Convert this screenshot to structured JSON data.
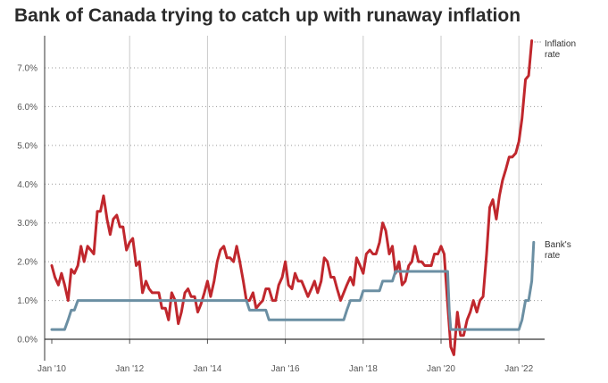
{
  "chart_data": {
    "type": "line",
    "title": "Bank of Canada trying to catch up with runaway inflation",
    "xlabel": "",
    "ylabel": "",
    "xlim": [
      2010.0,
      2022.5
    ],
    "ylim": [
      -0.5,
      7.8
    ],
    "x_ticks": [
      2010,
      2012,
      2014,
      2016,
      2018,
      2020,
      2022
    ],
    "x_tick_labels": [
      "Jan '10",
      "Jan '12",
      "Jan '14",
      "Jan '16",
      "Jan '18",
      "Jan '20",
      "Jan '22"
    ],
    "y_ticks": [
      0,
      1,
      2,
      3,
      4,
      5,
      6,
      7
    ],
    "y_tick_labels": [
      "0.0%",
      "1.0%",
      "2.0%",
      "3.0%",
      "4.0%",
      "5.0%",
      "6.0%",
      "7.0%"
    ],
    "grid": {
      "horizontal": "dotted",
      "vertical": "solid"
    },
    "series": [
      {
        "name": "Inflation rate",
        "color": "#c0272d",
        "points": [
          [
            2010.0,
            1.9
          ],
          [
            2010.08,
            1.6
          ],
          [
            2010.17,
            1.4
          ],
          [
            2010.25,
            1.7
          ],
          [
            2010.33,
            1.4
          ],
          [
            2010.42,
            1.0
          ],
          [
            2010.5,
            1.8
          ],
          [
            2010.58,
            1.7
          ],
          [
            2010.67,
            1.9
          ],
          [
            2010.75,
            2.4
          ],
          [
            2010.83,
            2.0
          ],
          [
            2010.92,
            2.4
          ],
          [
            2011.0,
            2.3
          ],
          [
            2011.08,
            2.2
          ],
          [
            2011.17,
            3.3
          ],
          [
            2011.25,
            3.3
          ],
          [
            2011.33,
            3.7
          ],
          [
            2011.42,
            3.1
          ],
          [
            2011.5,
            2.7
          ],
          [
            2011.58,
            3.1
          ],
          [
            2011.67,
            3.2
          ],
          [
            2011.75,
            2.9
          ],
          [
            2011.83,
            2.9
          ],
          [
            2011.92,
            2.3
          ],
          [
            2012.0,
            2.5
          ],
          [
            2012.08,
            2.6
          ],
          [
            2012.17,
            1.9
          ],
          [
            2012.25,
            2.0
          ],
          [
            2012.33,
            1.2
          ],
          [
            2012.42,
            1.5
          ],
          [
            2012.5,
            1.3
          ],
          [
            2012.58,
            1.2
          ],
          [
            2012.67,
            1.2
          ],
          [
            2012.75,
            1.2
          ],
          [
            2012.83,
            0.8
          ],
          [
            2012.92,
            0.8
          ],
          [
            2013.0,
            0.5
          ],
          [
            2013.08,
            1.2
          ],
          [
            2013.17,
            1.0
          ],
          [
            2013.25,
            0.4
          ],
          [
            2013.33,
            0.7
          ],
          [
            2013.42,
            1.2
          ],
          [
            2013.5,
            1.3
          ],
          [
            2013.58,
            1.1
          ],
          [
            2013.67,
            1.1
          ],
          [
            2013.75,
            0.7
          ],
          [
            2013.83,
            0.9
          ],
          [
            2013.92,
            1.2
          ],
          [
            2014.0,
            1.5
          ],
          [
            2014.08,
            1.1
          ],
          [
            2014.17,
            1.5
          ],
          [
            2014.25,
            2.0
          ],
          [
            2014.33,
            2.3
          ],
          [
            2014.42,
            2.4
          ],
          [
            2014.5,
            2.1
          ],
          [
            2014.58,
            2.1
          ],
          [
            2014.67,
            2.0
          ],
          [
            2014.75,
            2.4
          ],
          [
            2014.83,
            2.0
          ],
          [
            2014.92,
            1.5
          ],
          [
            2015.0,
            1.0
          ],
          [
            2015.08,
            1.0
          ],
          [
            2015.17,
            1.2
          ],
          [
            2015.25,
            0.8
          ],
          [
            2015.33,
            0.9
          ],
          [
            2015.42,
            1.0
          ],
          [
            2015.5,
            1.3
          ],
          [
            2015.58,
            1.3
          ],
          [
            2015.67,
            1.0
          ],
          [
            2015.75,
            1.0
          ],
          [
            2015.83,
            1.4
          ],
          [
            2015.92,
            1.6
          ],
          [
            2016.0,
            2.0
          ],
          [
            2016.08,
            1.4
          ],
          [
            2016.17,
            1.3
          ],
          [
            2016.25,
            1.7
          ],
          [
            2016.33,
            1.5
          ],
          [
            2016.42,
            1.5
          ],
          [
            2016.5,
            1.3
          ],
          [
            2016.58,
            1.1
          ],
          [
            2016.67,
            1.3
          ],
          [
            2016.75,
            1.5
          ],
          [
            2016.83,
            1.2
          ],
          [
            2016.92,
            1.5
          ],
          [
            2017.0,
            2.1
          ],
          [
            2017.08,
            2.0
          ],
          [
            2017.17,
            1.6
          ],
          [
            2017.25,
            1.6
          ],
          [
            2017.33,
            1.3
          ],
          [
            2017.42,
            1.0
          ],
          [
            2017.5,
            1.2
          ],
          [
            2017.58,
            1.4
          ],
          [
            2017.67,
            1.6
          ],
          [
            2017.75,
            1.4
          ],
          [
            2017.83,
            2.1
          ],
          [
            2017.92,
            1.9
          ],
          [
            2018.0,
            1.7
          ],
          [
            2018.08,
            2.2
          ],
          [
            2018.17,
            2.3
          ],
          [
            2018.25,
            2.2
          ],
          [
            2018.33,
            2.2
          ],
          [
            2018.42,
            2.5
          ],
          [
            2018.5,
            3.0
          ],
          [
            2018.58,
            2.8
          ],
          [
            2018.67,
            2.2
          ],
          [
            2018.75,
            2.4
          ],
          [
            2018.83,
            1.7
          ],
          [
            2018.92,
            2.0
          ],
          [
            2019.0,
            1.4
          ],
          [
            2019.08,
            1.5
          ],
          [
            2019.17,
            1.9
          ],
          [
            2019.25,
            2.0
          ],
          [
            2019.33,
            2.4
          ],
          [
            2019.42,
            2.0
          ],
          [
            2019.5,
            2.0
          ],
          [
            2019.58,
            1.9
          ],
          [
            2019.67,
            1.9
          ],
          [
            2019.75,
            1.9
          ],
          [
            2019.83,
            2.2
          ],
          [
            2019.92,
            2.2
          ],
          [
            2020.0,
            2.4
          ],
          [
            2020.08,
            2.2
          ],
          [
            2020.17,
            0.9
          ],
          [
            2020.25,
            -0.2
          ],
          [
            2020.33,
            -0.4
          ],
          [
            2020.42,
            0.7
          ],
          [
            2020.5,
            0.1
          ],
          [
            2020.58,
            0.1
          ],
          [
            2020.67,
            0.5
          ],
          [
            2020.75,
            0.7
          ],
          [
            2020.83,
            1.0
          ],
          [
            2020.92,
            0.7
          ],
          [
            2021.0,
            1.0
          ],
          [
            2021.08,
            1.1
          ],
          [
            2021.17,
            2.2
          ],
          [
            2021.25,
            3.4
          ],
          [
            2021.33,
            3.6
          ],
          [
            2021.42,
            3.1
          ],
          [
            2021.5,
            3.7
          ],
          [
            2021.58,
            4.1
          ],
          [
            2021.67,
            4.4
          ],
          [
            2021.75,
            4.7
          ],
          [
            2021.83,
            4.7
          ],
          [
            2021.92,
            4.8
          ],
          [
            2022.0,
            5.1
          ],
          [
            2022.08,
            5.7
          ],
          [
            2022.17,
            6.7
          ],
          [
            2022.25,
            6.8
          ],
          [
            2022.33,
            7.7
          ]
        ]
      },
      {
        "name": "Bank's rate",
        "color": "#6b8fa3",
        "points": [
          [
            2010.0,
            0.25
          ],
          [
            2010.33,
            0.25
          ],
          [
            2010.42,
            0.5
          ],
          [
            2010.5,
            0.75
          ],
          [
            2010.58,
            0.75
          ],
          [
            2010.67,
            1.0
          ],
          [
            2015.0,
            1.0
          ],
          [
            2015.08,
            0.75
          ],
          [
            2015.5,
            0.75
          ],
          [
            2015.58,
            0.5
          ],
          [
            2017.5,
            0.5
          ],
          [
            2017.58,
            0.75
          ],
          [
            2017.67,
            1.0
          ],
          [
            2017.92,
            1.0
          ],
          [
            2018.0,
            1.25
          ],
          [
            2018.42,
            1.25
          ],
          [
            2018.5,
            1.5
          ],
          [
            2018.75,
            1.5
          ],
          [
            2018.83,
            1.75
          ],
          [
            2020.17,
            1.75
          ],
          [
            2020.21,
            0.75
          ],
          [
            2020.25,
            0.25
          ],
          [
            2022.0,
            0.25
          ],
          [
            2022.08,
            0.5
          ],
          [
            2022.17,
            1.0
          ],
          [
            2022.25,
            1.0
          ],
          [
            2022.33,
            1.5
          ],
          [
            2022.38,
            2.5
          ]
        ]
      }
    ]
  }
}
